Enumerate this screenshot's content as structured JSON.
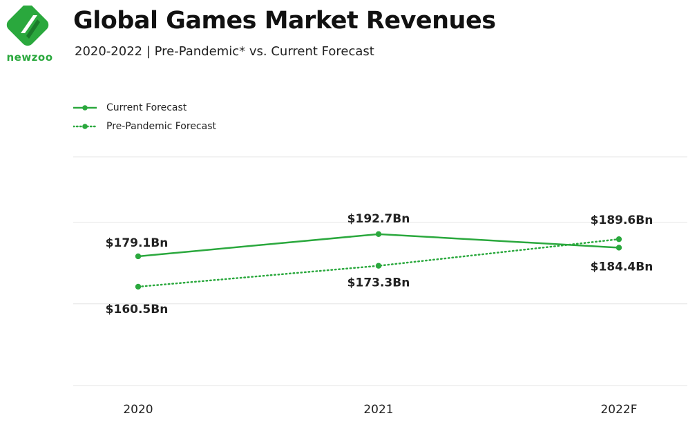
{
  "brand": {
    "logo_text": "newzoo",
    "accent_color": "#2aa83d"
  },
  "header": {
    "title": "Global Games Market Revenues",
    "subtitle": "2020-2022 | Pre-Pandemic* vs. Current Forecast"
  },
  "chart_data": {
    "type": "line",
    "title": "Global Games Market Revenues",
    "subtitle": "2020-2022 | Pre-Pandemic* vs. Current Forecast",
    "categories": [
      "2020",
      "2021",
      "2022F"
    ],
    "series": [
      {
        "name": "Current Forecast",
        "values": [
          179.1,
          192.7,
          184.4
        ],
        "labels": [
          "$179.1Bn",
          "$192.7Bn",
          "$184.4Bn"
        ],
        "line_style": "solid",
        "color": "#2aa83d"
      },
      {
        "name": "Pre-Pandemic Forecast",
        "values": [
          160.5,
          173.3,
          189.6
        ],
        "labels": [
          "$160.5Bn",
          "$173.3Bn",
          "$189.6Bn"
        ],
        "line_style": "dotted",
        "color": "#2aa83d"
      }
    ],
    "ylim": [
      100,
      240
    ],
    "gridlines": [
      100,
      150,
      200,
      240
    ],
    "grid": true,
    "legend_position": "top-left"
  }
}
